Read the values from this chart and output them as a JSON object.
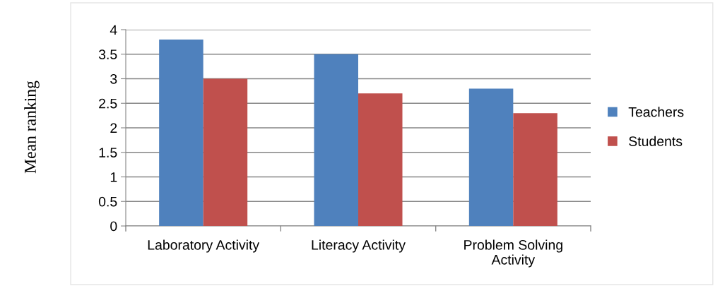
{
  "chart_data": {
    "type": "bar",
    "ylabel": "Mean ranking",
    "categories": [
      "Laboratory Activity",
      "Literacy Activity",
      "Problem Solving Activity"
    ],
    "series": [
      {
        "name": "Teachers",
        "color": "#4f81bd",
        "values": [
          3.8,
          3.5,
          2.8
        ]
      },
      {
        "name": "Students",
        "color": "#c0504d",
        "values": [
          3.0,
          2.7,
          2.3
        ]
      }
    ],
    "ylim": [
      0,
      4
    ],
    "yticks": [
      0,
      0.5,
      1,
      1.5,
      2,
      2.5,
      3,
      3.5,
      4
    ],
    "grid": "y",
    "legend": "right"
  }
}
